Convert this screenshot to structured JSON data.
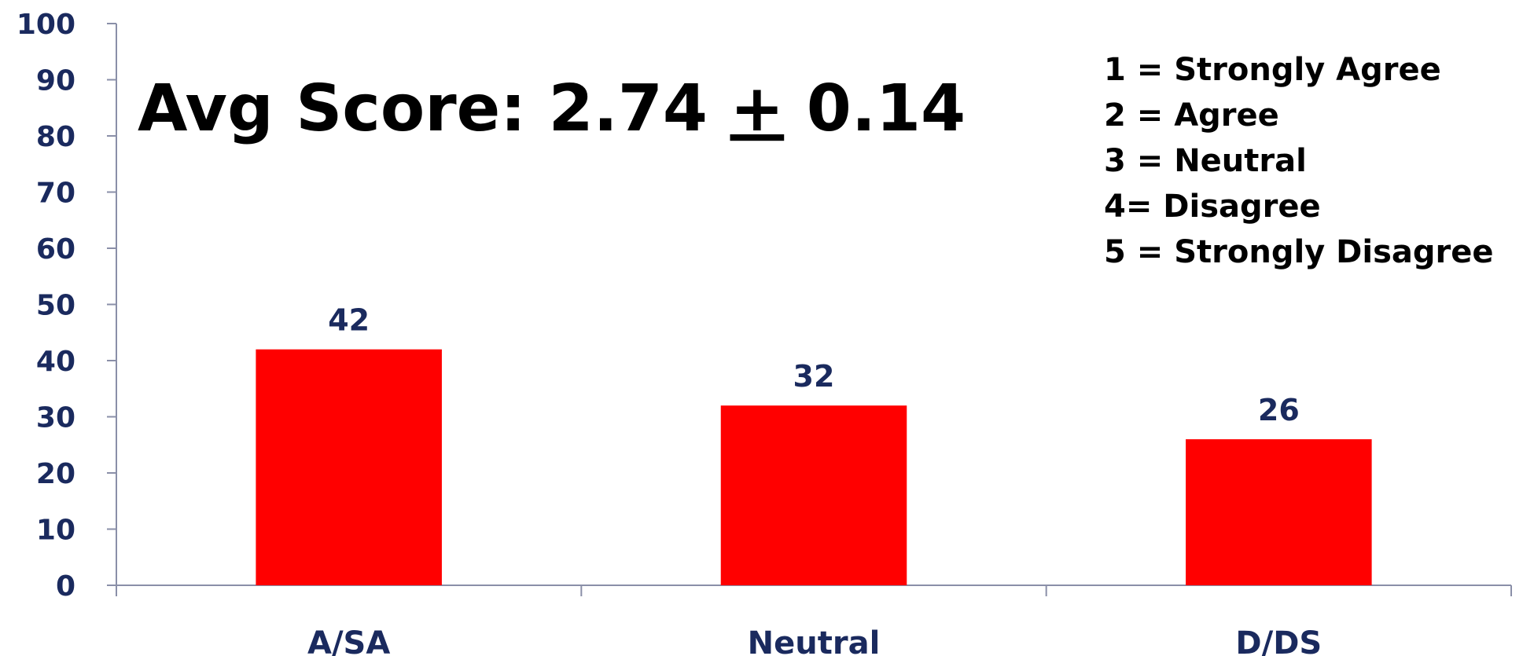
{
  "colors": {
    "bar": "#ff0000",
    "axis_text": "#1a2a5e",
    "axis_line": "#8a8fa8",
    "annotation_text": "#000000"
  },
  "chart_data": {
    "type": "bar",
    "categories": [
      "A/SA",
      "Neutral",
      "D/DS"
    ],
    "values": [
      42,
      32,
      26
    ],
    "data_labels": [
      "42",
      "32",
      "26"
    ],
    "title": "",
    "xlabel": "",
    "ylabel": "",
    "ylim": [
      0,
      100
    ],
    "yticks": [
      "0",
      "10",
      "20",
      "30",
      "40",
      "50",
      "60",
      "70",
      "80",
      "90",
      "100"
    ],
    "grid": false,
    "annotation": {
      "prefix": "Avg Score: 2.74 ",
      "plus_minus": "+",
      "suffix": " 0.14"
    },
    "key": [
      "1 = Strongly Agree",
      "2 = Agree",
      "3 = Neutral",
      "4= Disagree",
      "5 = Strongly Disagree"
    ],
    "key_placement": "top-right"
  }
}
